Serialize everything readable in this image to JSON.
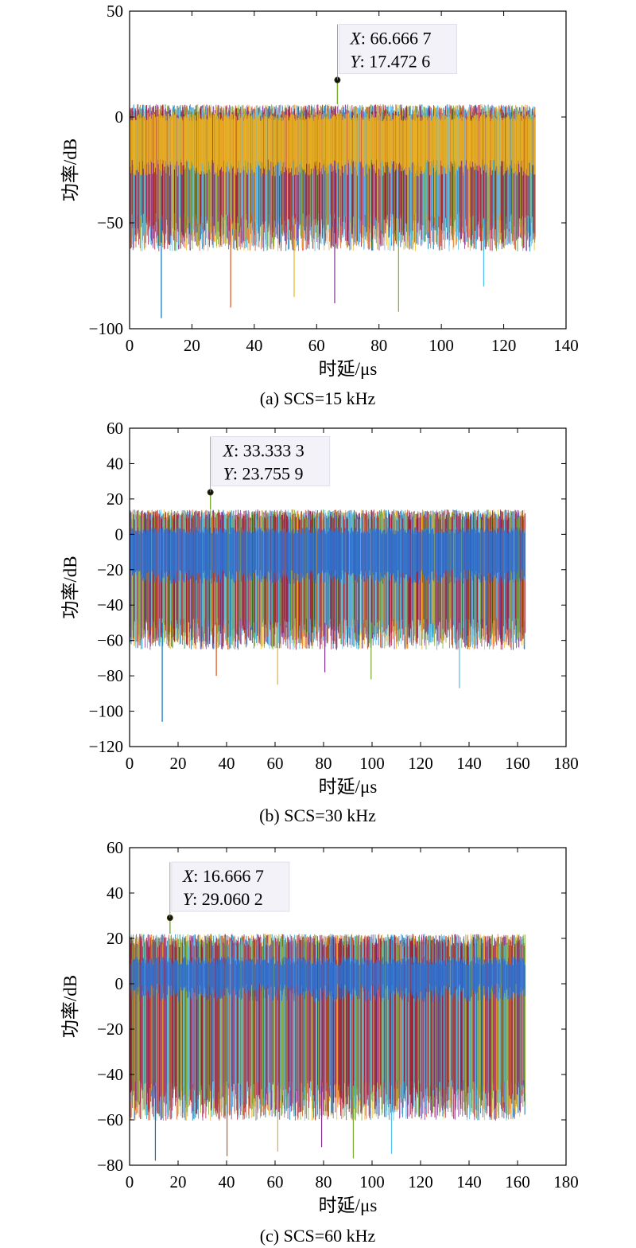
{
  "figure": {
    "panels": [
      "a",
      "b",
      "c"
    ]
  },
  "chart_data": [
    {
      "id": "a",
      "type": "line",
      "caption": "(a) SCS=15 kHz",
      "xlabel": "时延/μs",
      "ylabel": "功率/dB",
      "xlim": [
        0,
        140
      ],
      "ylim": [
        -100,
        50
      ],
      "xticks": [
        0,
        20,
        40,
        60,
        80,
        100,
        120,
        140
      ],
      "yticks": [
        -100,
        -50,
        0,
        50
      ],
      "x_extent": [
        0,
        130
      ],
      "series_palette": [
        "#0072bd",
        "#d95319",
        "#edb120",
        "#7e2f8e",
        "#77ac30",
        "#4dbeee",
        "#a2142f"
      ],
      "dominant_color": "#edb120",
      "band": {
        "upper": 6,
        "dense_high": 0,
        "dense_low": -20,
        "lower": -58,
        "min_spikes": [
          -95,
          -90,
          -85,
          -88,
          -92,
          -80
        ]
      },
      "datatip": {
        "x_label": "X",
        "x_value": "66.666 7",
        "y_label": "Y",
        "y_value": "17.472 6",
        "x": 66.6667,
        "y": 17.4726
      }
    },
    {
      "id": "b",
      "type": "line",
      "caption": "(b) SCS=30 kHz",
      "xlabel": "时延/μs",
      "ylabel": "功率/dB",
      "xlim": [
        0,
        180
      ],
      "ylim": [
        -120,
        60
      ],
      "xticks": [
        0,
        20,
        40,
        60,
        80,
        100,
        120,
        140,
        160,
        180
      ],
      "yticks": [
        -120,
        -100,
        -80,
        -60,
        -40,
        -20,
        0,
        20,
        40,
        60
      ],
      "x_extent": [
        0,
        163
      ],
      "series_palette": [
        "#0072bd",
        "#d95319",
        "#edb120",
        "#7e2f8e",
        "#77ac30",
        "#4dbeee",
        "#a2142f"
      ],
      "dominant_color": "#2f6fcf",
      "band": {
        "upper": 14,
        "dense_high": 2,
        "dense_low": -20,
        "lower": -60,
        "min_spikes": [
          -106,
          -80,
          -85,
          -78,
          -82,
          -87
        ]
      },
      "datatip": {
        "x_label": "X",
        "x_value": "33.333 3",
        "y_label": "Y",
        "y_value": "23.755 9",
        "x": 33.3333,
        "y": 23.7559
      }
    },
    {
      "id": "c",
      "type": "line",
      "caption": "(c) SCS=60 kHz",
      "xlabel": "时延/μs",
      "ylabel": "功率/dB",
      "xlim": [
        0,
        180
      ],
      "ylim": [
        -80,
        60
      ],
      "xticks": [
        0,
        20,
        40,
        60,
        80,
        100,
        120,
        140,
        160,
        180
      ],
      "yticks": [
        -80,
        -60,
        -40,
        -20,
        0,
        20,
        40,
        60
      ],
      "x_extent": [
        0,
        163
      ],
      "series_palette": [
        "#0072bd",
        "#d95319",
        "#edb120",
        "#7e2f8e",
        "#77ac30",
        "#4dbeee",
        "#a2142f"
      ],
      "dominant_color": "#2f6fcf",
      "band": {
        "upper": 22,
        "dense_high": 10,
        "dense_low": 0,
        "lower": -55,
        "min_spikes": [
          -78,
          -76,
          -74,
          -72,
          -77,
          -75
        ]
      },
      "datatip": {
        "x_label": "X",
        "x_value": "16.666 7",
        "y_label": "Y",
        "y_value": "29.060 2",
        "x": 16.6667,
        "y": 29.0602
      }
    }
  ]
}
